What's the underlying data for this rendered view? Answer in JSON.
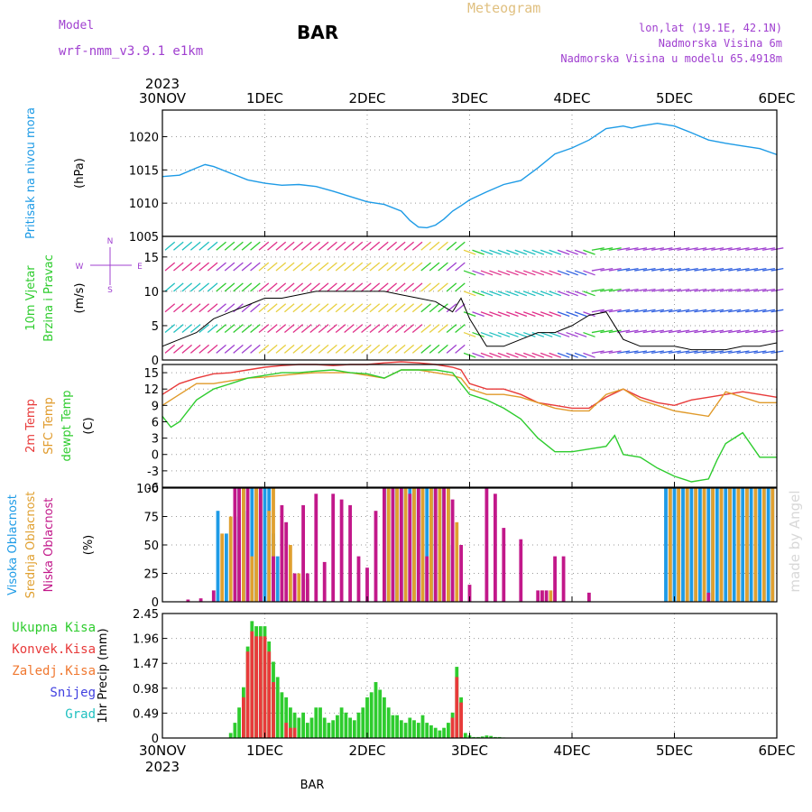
{
  "header": {
    "model_label": "Model",
    "model_name": "wrf-nmm_v3.9.1 e1km",
    "title": "BAR",
    "meteogram_label": "Meteogram",
    "lonlat": "lon,lat (19.1E, 42.1N)",
    "elevation": "Nadmorska Visina 6m",
    "model_elevation": "Nadmorska Visina u modelu 65.4918m",
    "year_top": "2023",
    "year_bottom": "2023",
    "footer_station": "BAR",
    "watermark": "made by Angel"
  },
  "colors": {
    "pressure": "#1e9be6",
    "temp2m": "#e83a3a",
    "sfc": "#e09a2a",
    "dewpt": "#2ecc2e",
    "high_cloud": "#1e9be6",
    "mid_cloud": "#e0a030",
    "low_cloud": "#c2188a",
    "purple": "#a040d0",
    "total_precip": "#2ecc2e",
    "conv_precip": "#e83a3a",
    "frz_precip": "#f07830",
    "snow": "#4040e0",
    "grad": "#20c0c0"
  },
  "chart_data": [
    {
      "type": "line",
      "panel": "pressure",
      "ylabel_lines": [
        "Pritisak na nivou mora",
        "(hPa)"
      ],
      "x_labels": [
        "30NOV",
        "1DEC",
        "2DEC",
        "3DEC",
        "4DEC",
        "5DEC",
        "6DEC"
      ],
      "xlim": [
        0,
        144
      ],
      "ylim": [
        1005,
        1024
      ],
      "yticks": [
        1005,
        1010,
        1015,
        1020
      ],
      "grid": true,
      "series": [
        {
          "x": [
            0,
            4,
            8,
            10,
            12,
            16,
            20,
            24,
            28,
            32,
            36,
            40,
            44,
            48,
            52,
            56,
            58,
            60,
            62,
            64,
            66,
            68,
            70,
            72,
            76,
            80,
            84,
            88,
            92,
            96,
            100,
            104,
            108,
            110,
            112,
            116,
            120,
            124,
            128,
            132,
            136,
            140,
            144
          ],
          "values": [
            1014,
            1014.2,
            1015.3,
            1015.8,
            1015.5,
            1014.5,
            1013.5,
            1013.0,
            1012.7,
            1012.8,
            1012.5,
            1011.8,
            1011.0,
            1010.2,
            1009.8,
            1008.8,
            1007.4,
            1006.4,
            1006.3,
            1006.7,
            1007.6,
            1008.8,
            1009.6,
            1010.5,
            1011.7,
            1012.8,
            1013.4,
            1015.3,
            1017.4,
            1018.3,
            1019.5,
            1021.2,
            1021.6,
            1021.3,
            1021.6,
            1022.0,
            1021.6,
            1020.6,
            1019.5,
            1019.0,
            1018.6,
            1018.2,
            1017.3
          ]
        }
      ]
    },
    {
      "type": "line",
      "panel": "wind",
      "ylabel_lines": [
        "10m Vjetar",
        "Brzina i Pravac",
        "(m/s)"
      ],
      "compass": [
        "N",
        "W",
        "E",
        "S"
      ],
      "xlim": [
        0,
        144
      ],
      "ylim": [
        0,
        18
      ],
      "yticks": [
        0,
        5,
        10,
        15
      ],
      "grid": true,
      "series": [
        {
          "name": "speed",
          "x": [
            0,
            4,
            8,
            12,
            16,
            20,
            24,
            28,
            32,
            36,
            40,
            44,
            48,
            52,
            56,
            60,
            64,
            68,
            70,
            72,
            76,
            80,
            84,
            88,
            92,
            96,
            100,
            104,
            108,
            112,
            116,
            120,
            124,
            128,
            132,
            136,
            140,
            144
          ],
          "values": [
            2,
            3,
            4,
            6,
            7,
            8,
            9,
            9,
            9.5,
            10,
            10,
            10,
            10,
            10,
            9.5,
            9,
            8.5,
            7,
            9,
            6,
            2,
            2,
            3,
            4,
            4,
            5,
            6.5,
            7,
            3,
            2,
            2,
            2,
            1.5,
            1.5,
            1.5,
            2,
            2,
            2.5
          ]
        }
      ]
    },
    {
      "type": "line",
      "panel": "temperature",
      "ylabel_lines": [
        "2m Temp",
        "SFC Temp",
        "dewpt Temp",
        "(C)"
      ],
      "xlim": [
        0,
        144
      ],
      "ylim": [
        -6,
        16.5
      ],
      "yticks": [
        -6,
        -3,
        0,
        3,
        6,
        9,
        12,
        15
      ],
      "grid": true,
      "series": [
        {
          "name": "2m Temp",
          "x": [
            0,
            4,
            8,
            12,
            16,
            20,
            24,
            28,
            32,
            36,
            40,
            44,
            48,
            52,
            56,
            60,
            64,
            68,
            70,
            72,
            76,
            80,
            84,
            88,
            92,
            96,
            100,
            104,
            108,
            112,
            116,
            120,
            124,
            128,
            132,
            136,
            140,
            144
          ],
          "values": [
            11,
            13,
            14,
            14.8,
            15,
            15.5,
            16,
            16.3,
            16.5,
            16.5,
            16.3,
            16.5,
            16.5,
            16.8,
            17,
            16.8,
            16.5,
            16,
            15.5,
            13,
            12,
            12,
            11,
            9.5,
            9,
            8.5,
            8.5,
            10.5,
            12,
            10.5,
            9.5,
            9,
            10,
            10.5,
            11,
            11.5,
            11,
            10.5
          ]
        },
        {
          "name": "SFC Temp",
          "x": [
            0,
            4,
            8,
            12,
            16,
            20,
            24,
            28,
            32,
            36,
            40,
            44,
            48,
            52,
            56,
            60,
            64,
            68,
            70,
            72,
            76,
            80,
            84,
            88,
            92,
            96,
            100,
            104,
            108,
            112,
            116,
            120,
            124,
            128,
            132,
            136,
            140,
            144
          ],
          "values": [
            9,
            11,
            13,
            13,
            13.5,
            14,
            14.2,
            14.5,
            14.8,
            15,
            15,
            15,
            14.5,
            14,
            15.5,
            15.5,
            15,
            14.5,
            14,
            12,
            11,
            11,
            10.5,
            9.5,
            8.5,
            8,
            8,
            11,
            12,
            10,
            9,
            8,
            7.5,
            7,
            11.5,
            10.5,
            9.5,
            9.5
          ]
        },
        {
          "name": "dewpt Temp",
          "x": [
            0,
            2,
            4,
            8,
            12,
            16,
            20,
            24,
            28,
            32,
            36,
            40,
            44,
            48,
            52,
            56,
            60,
            64,
            68,
            70,
            72,
            76,
            80,
            84,
            88,
            92,
            96,
            100,
            104,
            106,
            108,
            112,
            116,
            120,
            124,
            128,
            130,
            132,
            134,
            136,
            140,
            144
          ],
          "values": [
            7,
            5,
            6,
            10,
            12,
            13,
            14,
            14.5,
            15,
            15,
            15.3,
            15.5,
            15,
            14.8,
            14,
            15.5,
            15.5,
            15.5,
            15,
            13,
            11,
            10,
            8.5,
            6.5,
            3,
            0.5,
            0.5,
            1,
            1.5,
            3.5,
            0,
            -0.5,
            -2.5,
            -4,
            -5,
            -4.5,
            -1,
            2,
            3,
            4,
            -0.5,
            -0.5
          ]
        }
      ]
    },
    {
      "type": "bar",
      "panel": "clouds",
      "ylabel_lines": [
        "Visoka Oblacnost",
        "Srednja Oblacnost",
        "Niska Oblacnost",
        "(%)"
      ],
      "xlim": [
        0,
        144
      ],
      "ylim": [
        0,
        100
      ],
      "yticks": [
        0,
        25,
        50,
        75,
        100
      ],
      "grid": true,
      "series": [
        {
          "name": "Visoka Oblacnost",
          "x": [
            13,
            15,
            17,
            18,
            19,
            20,
            21,
            22,
            23,
            24,
            25,
            26,
            27,
            52,
            53,
            54,
            55,
            56,
            57,
            58,
            59,
            60,
            61,
            62,
            63,
            64,
            65,
            66,
            67,
            68,
            118,
            119,
            120,
            121,
            122,
            123,
            124,
            125,
            126,
            127,
            128,
            129,
            130,
            131,
            132,
            133,
            134,
            135,
            136,
            137,
            138,
            139,
            140,
            141,
            142,
            143
          ],
          "values": [
            80,
            60,
            75,
            100,
            100,
            80,
            100,
            100,
            95,
            100,
            100,
            60,
            40,
            100,
            100,
            100,
            100,
            100,
            100,
            100,
            100,
            100,
            100,
            100,
            100,
            100,
            100,
            100,
            100,
            50,
            100,
            100,
            100,
            100,
            100,
            100,
            100,
            100,
            100,
            100,
            100,
            100,
            100,
            100,
            100,
            100,
            100,
            100,
            100,
            100,
            100,
            100,
            100,
            100,
            100,
            100
          ]
        },
        {
          "name": "Srednja Oblacnost",
          "x": [
            14,
            16,
            18,
            19,
            21,
            22,
            23,
            25,
            26,
            28,
            30,
            32,
            34,
            53,
            55,
            57,
            59,
            61,
            63,
            65,
            67,
            69,
            89,
            91,
            92,
            119,
            121,
            123,
            125,
            127,
            129,
            131,
            133,
            135,
            137,
            139,
            141,
            143
          ],
          "values": [
            60,
            75,
            50,
            100,
            40,
            100,
            100,
            80,
            100,
            70,
            50,
            25,
            20,
            100,
            100,
            100,
            100,
            100,
            100,
            100,
            100,
            70,
            10,
            10,
            10,
            100,
            100,
            100,
            100,
            100,
            100,
            100,
            100,
            100,
            100,
            100,
            100,
            100
          ]
        },
        {
          "name": "Niska Oblacnost",
          "x": [
            6,
            9,
            12,
            17,
            18,
            20,
            23,
            26,
            28,
            29,
            31,
            33,
            34,
            36,
            38,
            40,
            42,
            44,
            46,
            48,
            50,
            52,
            54,
            56,
            58,
            60,
            62,
            64,
            66,
            68,
            70,
            72,
            76,
            78,
            80,
            84,
            88,
            89,
            90,
            92,
            94,
            100,
            128
          ],
          "values": [
            2,
            3,
            10,
            100,
            100,
            100,
            100,
            40,
            85,
            70,
            25,
            85,
            25,
            95,
            35,
            95,
            90,
            85,
            40,
            30,
            80,
            100,
            100,
            100,
            95,
            100,
            40,
            100,
            100,
            90,
            50,
            15,
            100,
            95,
            65,
            55,
            10,
            10,
            10,
            40,
            40,
            8,
            8
          ]
        }
      ]
    },
    {
      "type": "bar",
      "panel": "precipitation",
      "ylabel_lines": [
        "1hr Precip (mm)"
      ],
      "legend": [
        "Ukupna Kisa",
        "Konvek.Kisa",
        "Zaledj.Kisa",
        "Snijeg",
        "Grad"
      ],
      "xlim": [
        0,
        144
      ],
      "ylim": [
        0,
        2.45
      ],
      "yticks": [
        0,
        0.49,
        0.98,
        1.47,
        1.96,
        2.45
      ],
      "grid": true,
      "series": [
        {
          "name": "Ukupna Kisa",
          "x": [
            16,
            17,
            18,
            19,
            20,
            21,
            22,
            23,
            24,
            25,
            26,
            27,
            28,
            29,
            30,
            31,
            32,
            33,
            34,
            35,
            36,
            37,
            38,
            39,
            40,
            41,
            42,
            43,
            44,
            45,
            46,
            47,
            48,
            49,
            50,
            51,
            52,
            53,
            54,
            55,
            56,
            57,
            58,
            59,
            60,
            61,
            62,
            63,
            64,
            65,
            66,
            67,
            68,
            69,
            70,
            71,
            72,
            73,
            74,
            75,
            76,
            77,
            78,
            79,
            80
          ],
          "values": [
            0.1,
            0.3,
            0.6,
            1.0,
            1.8,
            2.3,
            2.2,
            2.2,
            2.2,
            1.9,
            1.5,
            1.2,
            0.9,
            0.8,
            0.6,
            0.5,
            0.4,
            0.5,
            0.3,
            0.4,
            0.6,
            0.6,
            0.4,
            0.3,
            0.35,
            0.45,
            0.6,
            0.5,
            0.4,
            0.35,
            0.5,
            0.6,
            0.8,
            0.9,
            1.1,
            0.95,
            0.8,
            0.6,
            0.45,
            0.45,
            0.35,
            0.3,
            0.4,
            0.35,
            0.3,
            0.45,
            0.3,
            0.25,
            0.2,
            0.15,
            0.2,
            0.3,
            0.5,
            1.4,
            0.8,
            0.1,
            0.05,
            0.02,
            0.02,
            0.03,
            0.05,
            0.04,
            0.02,
            0.02,
            0.01
          ]
        },
        {
          "name": "Konvek.Kisa",
          "x": [
            19,
            20,
            21,
            22,
            23,
            24,
            25,
            26,
            29,
            30,
            31,
            68,
            69,
            70
          ],
          "values": [
            0.8,
            1.7,
            2.1,
            2.0,
            2.0,
            2.0,
            1.7,
            1.1,
            0.3,
            0.2,
            0.2,
            0.4,
            1.2,
            0.7
          ]
        }
      ]
    }
  ]
}
